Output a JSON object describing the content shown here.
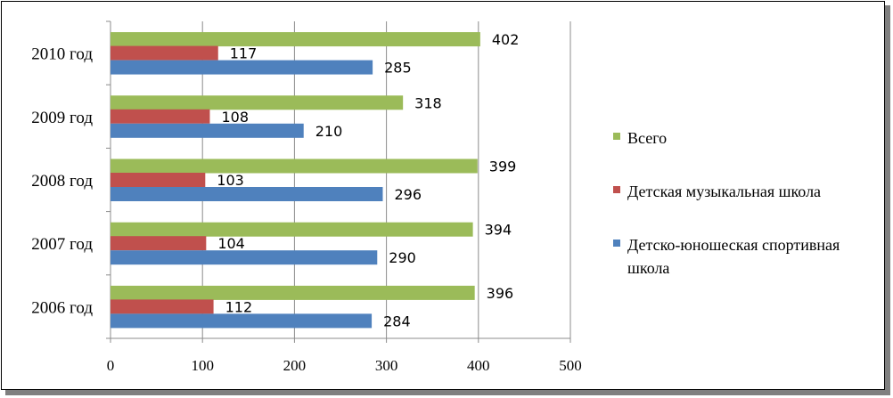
{
  "chart_data": {
    "type": "bar",
    "orientation": "horizontal",
    "categories": [
      "2010 год",
      "2009 год",
      "2008 год",
      "2007 год",
      "2006 год"
    ],
    "series": [
      {
        "name": "Всего",
        "color": "#9bbb59",
        "values": [
          402,
          318,
          399,
          394,
          396
        ]
      },
      {
        "name": "Детская музыкальная школа",
        "color": "#c0504d",
        "values": [
          117,
          108,
          103,
          104,
          112
        ]
      },
      {
        "name": "Детско-юношеская спортивная школа",
        "color": "#4f81bd",
        "values": [
          285,
          210,
          296,
          290,
          284
        ]
      }
    ],
    "xlim": [
      0,
      500
    ],
    "xticks": [
      "0",
      "100",
      "200",
      "300",
      "400",
      "500"
    ],
    "grid": "vertical",
    "legend": {
      "placement": "right",
      "entries": [
        {
          "lines": [
            "Всего"
          ],
          "color": "#9bbb59"
        },
        {
          "lines": [
            "Детская музыкальная школа"
          ],
          "color": "#c0504d"
        },
        {
          "lines": [
            "Детско-юношеская спортивная",
            "школа"
          ],
          "color": "#4f81bd"
        }
      ]
    },
    "title": "",
    "xlabel": "",
    "ylabel": ""
  }
}
